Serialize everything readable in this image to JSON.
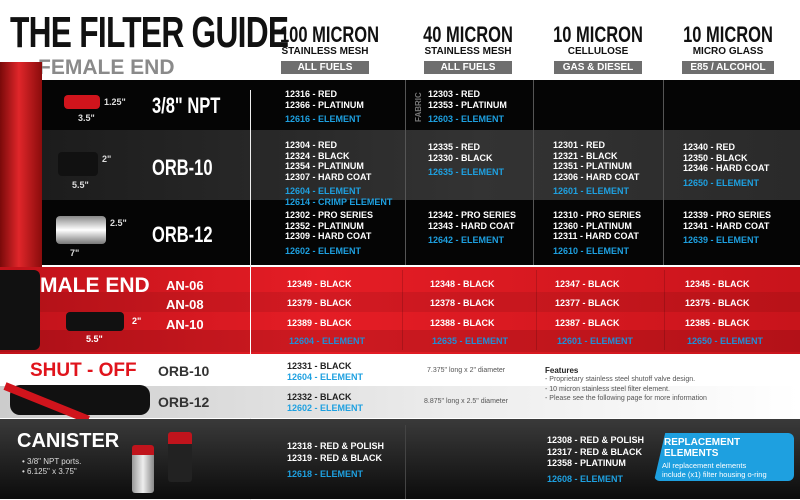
{
  "header": {
    "title": "THE FILTER GUIDE",
    "subtitle": "FEMALE END"
  },
  "columns": [
    {
      "micron": "100 MICRON",
      "media": "STAINLESS MESH",
      "fuel": "ALL FUELS"
    },
    {
      "micron": "40 MICRON",
      "media": "STAINLESS MESH",
      "fuel": "ALL FUELS"
    },
    {
      "micron": "10 MICRON",
      "media": "CELLULOSE",
      "fuel": "GAS & DIESEL"
    },
    {
      "micron": "10 MICRON",
      "media": "MICRO GLASS",
      "fuel": "E85 / ALCOHOL"
    }
  ],
  "female": {
    "rows": [
      {
        "label": "3/8\" NPT",
        "dim_h": "1.25\"",
        "dim_w": "3.5\"",
        "fabric_label": "FABRIC",
        "cells": [
          {
            "items": [
              "12316 - RED",
              "12366 - PLATINUM"
            ],
            "elements": [
              "12616 - ELEMENT"
            ]
          },
          {
            "items": [
              "12303 - RED",
              "12353 - PLATINUM"
            ],
            "elements": [
              "12603 - ELEMENT"
            ]
          },
          {
            "items": [],
            "elements": []
          },
          {
            "items": [],
            "elements": []
          }
        ]
      },
      {
        "label": "ORB-10",
        "dim_h": "2\"",
        "dim_w": "5.5\"",
        "cells": [
          {
            "items": [
              "12304 - RED",
              "12324 - BLACK",
              "12354 - PLATINUM",
              "12307 - HARD COAT"
            ],
            "elements": [
              "12604 - ELEMENT",
              "12614 - CRIMP ELEMENT"
            ]
          },
          {
            "items": [
              "12335 - RED",
              "12330 - BLACK"
            ],
            "elements": [
              "12635 - ELEMENT"
            ]
          },
          {
            "items": [
              "12301 - RED",
              "12321 - BLACK",
              "12351 - PLATINUM",
              "12306 - HARD COAT"
            ],
            "elements": [
              "12601 - ELEMENT"
            ]
          },
          {
            "items": [
              "12340 - RED",
              "12350 - BLACK",
              "12346 - HARD COAT"
            ],
            "elements": [
              "12650 - ELEMENT"
            ]
          }
        ]
      },
      {
        "label": "ORB-12",
        "dim_h": "2.5\"",
        "dim_w": "7\"",
        "cells": [
          {
            "items": [
              "12302 - PRO SERIES",
              "12352 - PLATINUM",
              "12309 - HARD COAT"
            ],
            "elements": [
              "12602 - ELEMENT"
            ]
          },
          {
            "items": [
              "12342 - PRO SERIES",
              "12343 - HARD COAT"
            ],
            "elements": [
              "12642 - ELEMENT"
            ]
          },
          {
            "items": [
              "12310 - PRO SERIES",
              "12360 - PLATINUM",
              "12311 - HARD COAT"
            ],
            "elements": [
              "12610 - ELEMENT"
            ]
          },
          {
            "items": [
              "12339 - PRO SERIES",
              "12341 - HARD COAT"
            ],
            "elements": [
              "12639 - ELEMENT"
            ]
          }
        ]
      }
    ]
  },
  "male": {
    "title": "MALE END",
    "dim_h": "2\"",
    "dim_w": "5.5\"",
    "rows": [
      {
        "label": "AN-06",
        "values": [
          "12349 - BLACK",
          "12348 - BLACK",
          "12347 - BLACK",
          "12345 - BLACK"
        ]
      },
      {
        "label": "AN-08",
        "values": [
          "12379 - BLACK",
          "12378 - BLACK",
          "12377 - BLACK",
          "12375 - BLACK"
        ]
      },
      {
        "label": "AN-10",
        "values": [
          "12389 - BLACK",
          "12388 - BLACK",
          "12387 - BLACK",
          "12385 - BLACK"
        ]
      }
    ],
    "elements": [
      "12604 - ELEMENT",
      "12635 - ELEMENT",
      "12601 - ELEMENT",
      "12650 - ELEMENT"
    ]
  },
  "shutoff": {
    "title": "SHUT - OFF",
    "rows": [
      {
        "label": "ORB-10",
        "part": "12331 - BLACK",
        "element": "12604 - ELEMENT",
        "size": "7.375\" long x 2\" diameter"
      },
      {
        "label": "ORB-12",
        "part": "12332 - BLACK",
        "element": "12602 - ELEMENT",
        "size": "8.875\" long x 2.5\" diameter"
      }
    ],
    "features_title": "Features",
    "features": [
      "- Proprietary stainless steel shutoff valve design.",
      "- 10 micron stainless steel filter element.",
      "- Please see the following page for more information"
    ]
  },
  "canister": {
    "title": "CANISTER",
    "bullets": [
      "• 3/8\" NPT ports.",
      "• 6.125\" x 3.75\""
    ],
    "col1": {
      "items": [
        "12318 - RED & POLISH",
        "12319 - RED & BLACK"
      ],
      "element": "12618 - ELEMENT"
    },
    "col3": {
      "items": [
        "12308 - RED & POLISH",
        "12317 - RED & BLACK",
        "12358 - PLATINUM"
      ],
      "element": "12608 - ELEMENT"
    },
    "callout": {
      "title": "REPLACEMENT ELEMENTS",
      "text1": "All replacement elements",
      "text2": "include (x1) filter housing o-ring"
    }
  },
  "colors": {
    "accent_blue": "#1ea0e0",
    "brand_red": "#d8141c"
  }
}
